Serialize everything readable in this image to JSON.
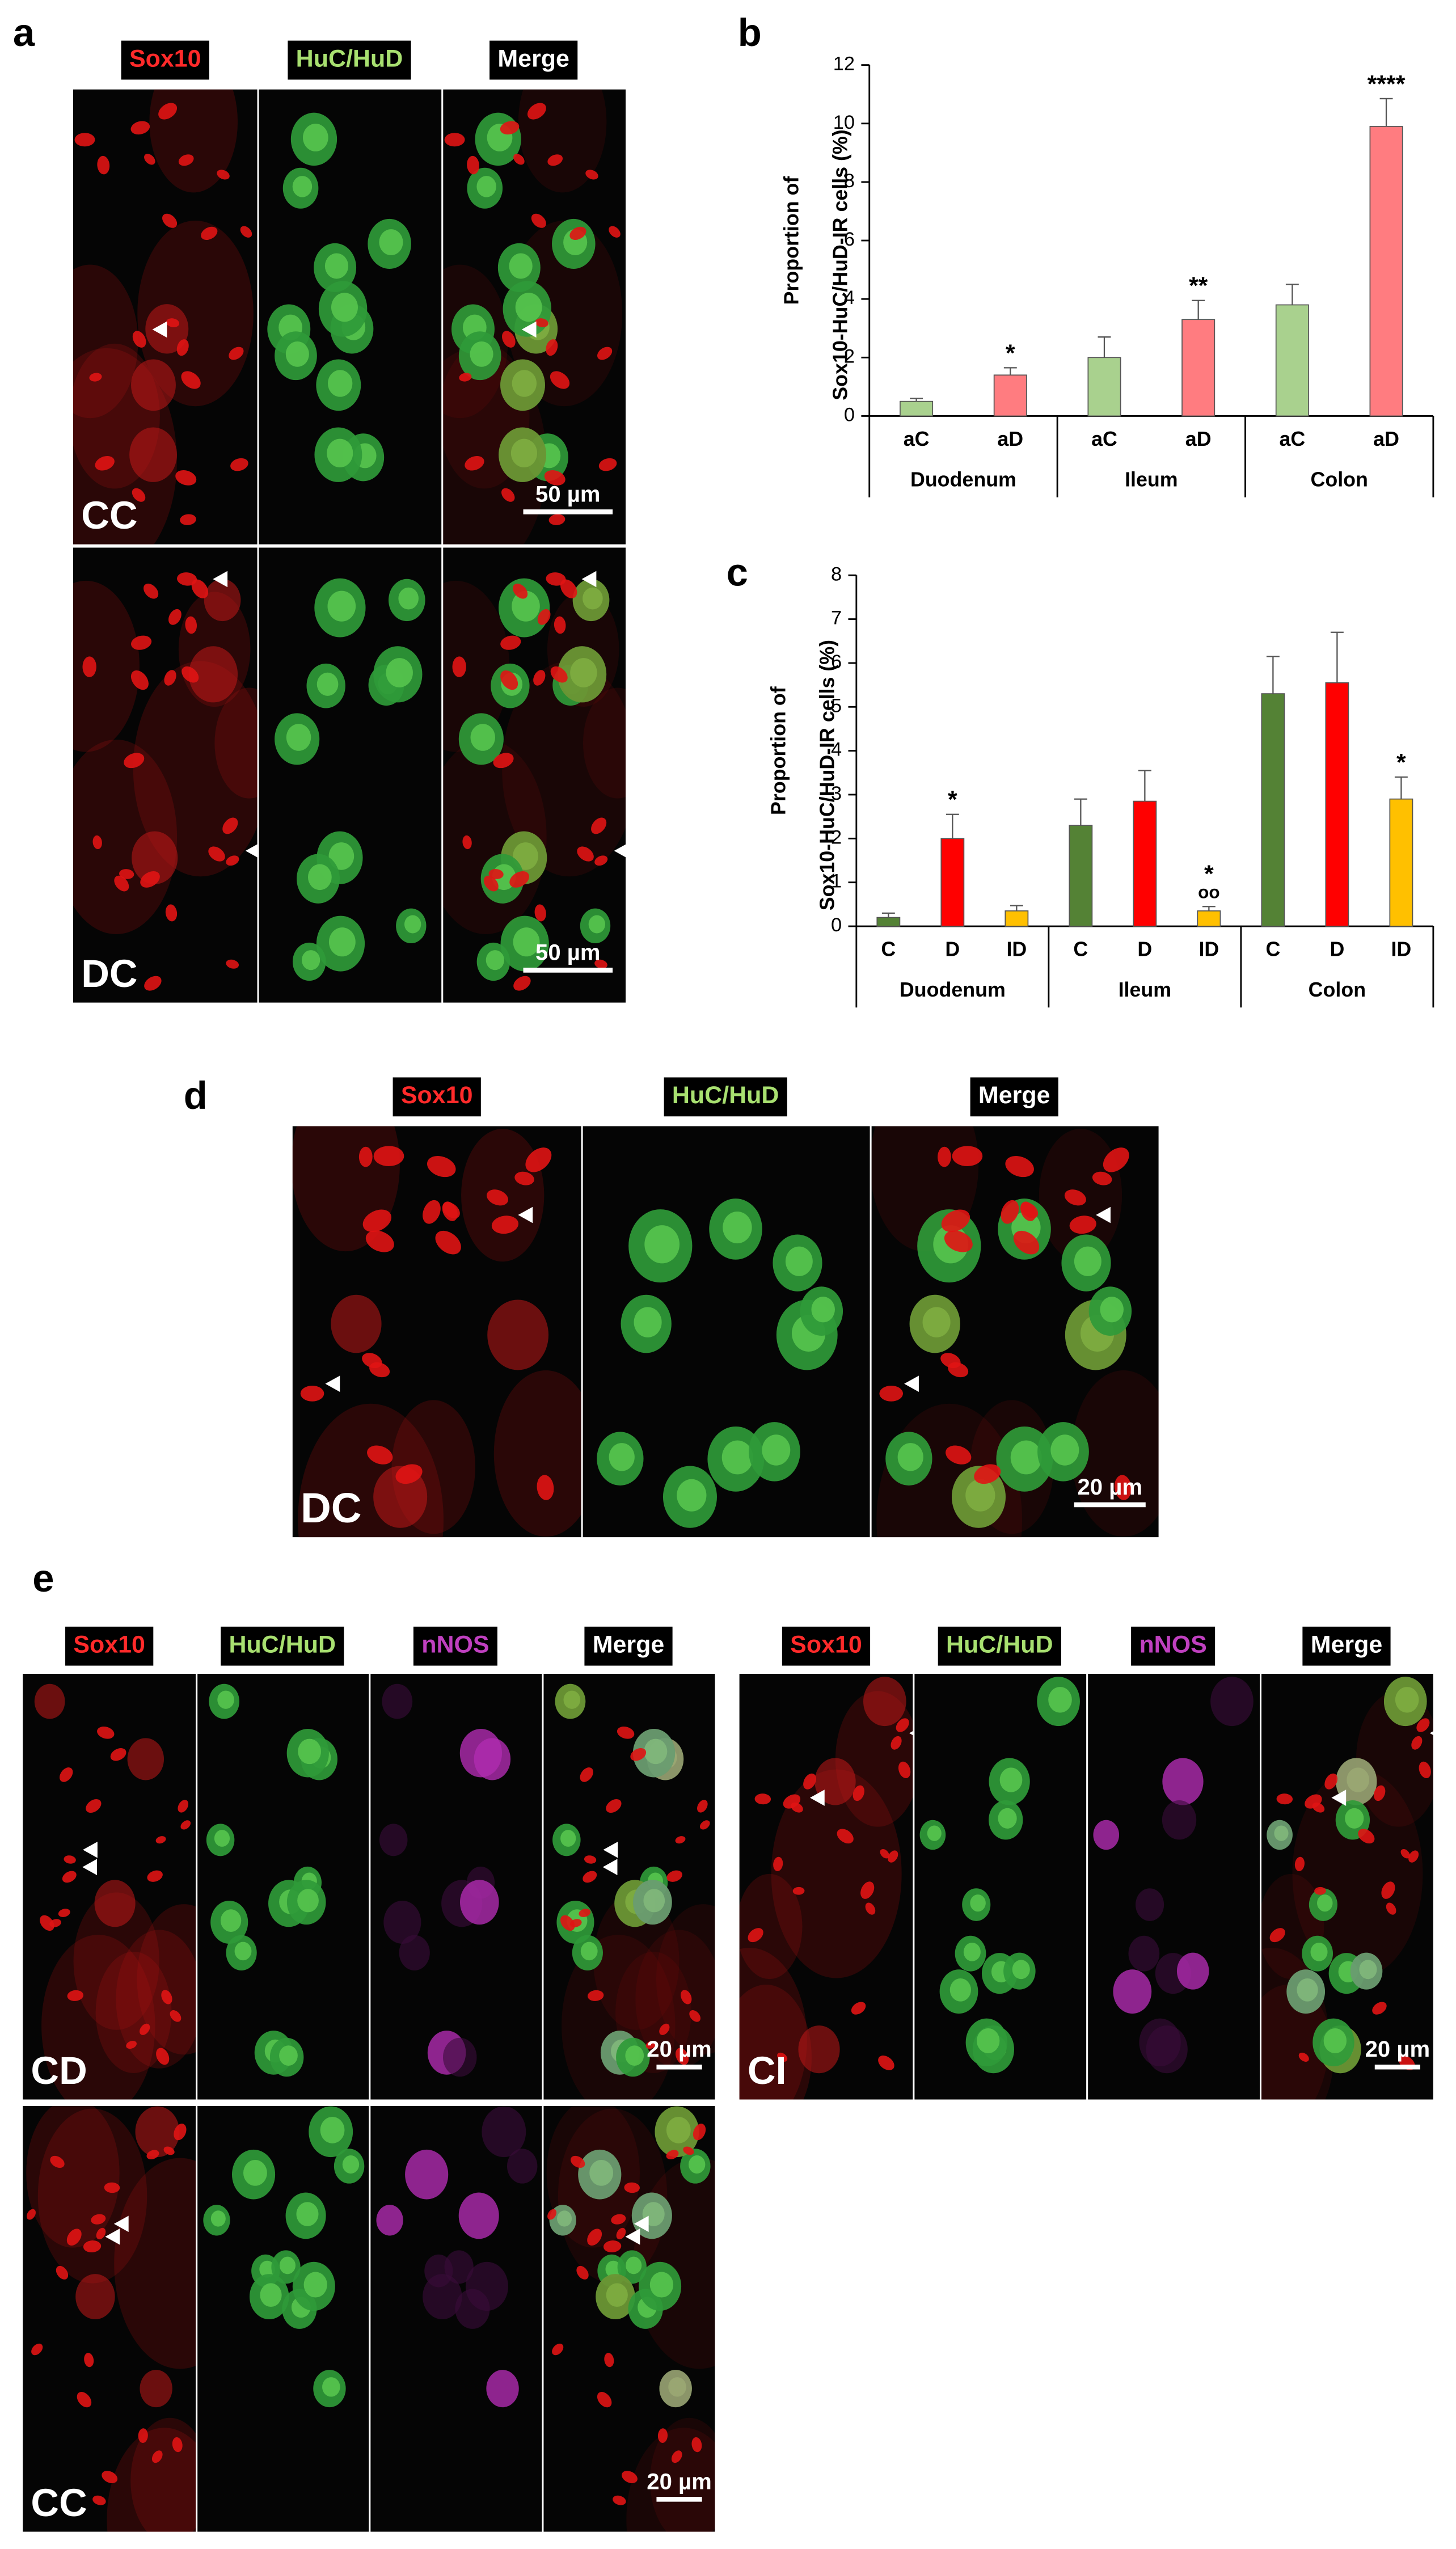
{
  "panel_a": {
    "label": "a",
    "channels": [
      {
        "name": "Sox10",
        "color": "#ff2a2a"
      },
      {
        "name": "HuC/HuD",
        "color": "#a8e070"
      },
      {
        "name": "Merge",
        "color": "#ffffff"
      }
    ],
    "rows": [
      {
        "label": "CC",
        "scale_bar": "50 µm"
      },
      {
        "label": "DC",
        "scale_bar": "50 µm"
      }
    ]
  },
  "chart_data": [
    {
      "type": "bar",
      "label": "b",
      "y_label": [
        "Proportion of",
        "Sox10-HuC/HuD-IR cells (%)"
      ],
      "categories": [
        "aC",
        "aD",
        "aC",
        "aD",
        "aC",
        "aD"
      ],
      "groups": [
        "Duodenum",
        "Ileum",
        "Colon"
      ],
      "values": [
        0.5,
        1.4,
        2.0,
        3.3,
        3.8,
        9.9
      ],
      "errors": [
        0.1,
        0.25,
        0.7,
        0.65,
        0.7,
        0.95
      ],
      "annotations": [
        null,
        [
          "*"
        ],
        null,
        [
          "**"
        ],
        null,
        [
          "****"
        ]
      ],
      "colors": [
        "#a9d18e",
        "#ff7c80",
        "#a9d18e",
        "#ff7c80",
        "#a9d18e",
        "#ff7c80"
      ],
      "ylim": [
        0,
        12
      ],
      "yticks": [
        0,
        2,
        4,
        6,
        8,
        10,
        12
      ],
      "grid": false
    },
    {
      "type": "bar",
      "label": "c",
      "y_label": [
        "Proportion of",
        "Sox10-HuC/HuD-IR cells (%)"
      ],
      "categories": [
        "C",
        "D",
        "ID",
        "C",
        "D",
        "ID",
        "C",
        "D",
        "ID"
      ],
      "groups": [
        "Duodenum",
        "Ileum",
        "Colon"
      ],
      "values": [
        0.2,
        2.0,
        0.35,
        2.3,
        2.85,
        0.35,
        5.3,
        5.55,
        2.9
      ],
      "errors": [
        0.1,
        0.55,
        0.12,
        0.6,
        0.7,
        0.1,
        0.85,
        1.15,
        0.5
      ],
      "annotations": [
        null,
        [
          "*"
        ],
        null,
        null,
        null,
        [
          "*",
          "oo"
        ],
        null,
        null,
        [
          "*"
        ]
      ],
      "colors": [
        "#548235",
        "#ff0000",
        "#ffc000",
        "#548235",
        "#ff0000",
        "#ffc000",
        "#548235",
        "#ff0000",
        "#ffc000"
      ],
      "ylim": [
        0,
        8
      ],
      "yticks": [
        0,
        1,
        2,
        3,
        4,
        5,
        6,
        7,
        8
      ],
      "grid": false
    }
  ],
  "panel_d": {
    "label": "d",
    "channels": [
      {
        "name": "Sox10",
        "color": "#ff2a2a"
      },
      {
        "name": "HuC/HuD",
        "color": "#a8e070"
      },
      {
        "name": "Merge",
        "color": "#ffffff"
      }
    ],
    "rows": [
      {
        "label": "DC",
        "scale_bar": "20 µm"
      }
    ]
  },
  "panel_e": {
    "label": "e",
    "groups": [
      {
        "channels": [
          {
            "name": "Sox10",
            "color": "#ff2a2a"
          },
          {
            "name": "HuC/HuD",
            "color": "#a8e070"
          },
          {
            "name": "nNOS",
            "color": "#c040c0"
          },
          {
            "name": "Merge",
            "color": "#ffffff"
          }
        ],
        "rows": [
          {
            "label": "CD",
            "scale_bar": "20 µm"
          },
          {
            "label": "CC",
            "scale_bar": "20 µm"
          }
        ]
      },
      {
        "channels": [
          {
            "name": "Sox10",
            "color": "#ff2a2a"
          },
          {
            "name": "HuC/HuD",
            "color": "#a8e070"
          },
          {
            "name": "nNOS",
            "color": "#c040c0"
          },
          {
            "name": "Merge",
            "color": "#ffffff"
          }
        ],
        "rows": [
          {
            "label": "CI",
            "scale_bar": "20 µm"
          }
        ]
      }
    ]
  }
}
